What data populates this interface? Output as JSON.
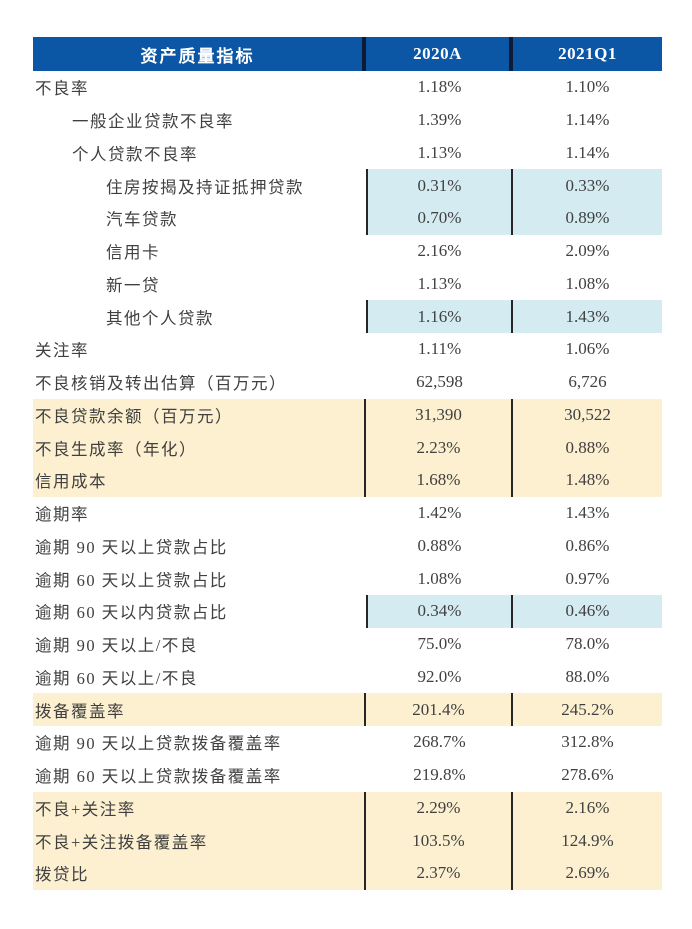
{
  "colors": {
    "header_bg": "#0B57A5",
    "header_divider": "#0D1B36",
    "highlight_blue": "#D4EBF2",
    "highlight_yellow": "#FCF0D0",
    "cell_border": "#262626",
    "text": "#404040",
    "header_text": "#FFFFFF",
    "page_bg": "#FFFFFF"
  },
  "table": {
    "header": {
      "indicator": "资产质量指标",
      "col_2020a": "2020A",
      "col_2021q1": "2021Q1"
    },
    "rows": [
      {
        "label": "不良率",
        "v2020a": "1.18%",
        "v2021q1": "1.10%",
        "indent": 0,
        "highlight": "none"
      },
      {
        "label": "一般企业贷款不良率",
        "v2020a": "1.39%",
        "v2021q1": "1.14%",
        "indent": 1,
        "highlight": "none"
      },
      {
        "label": "个人贷款不良率",
        "v2020a": "1.13%",
        "v2021q1": "1.14%",
        "indent": 1,
        "highlight": "none"
      },
      {
        "label": "住房按揭及持证抵押贷款",
        "v2020a": "0.31%",
        "v2021q1": "0.33%",
        "indent": 2,
        "highlight": "blue"
      },
      {
        "label": "汽车贷款",
        "v2020a": "0.70%",
        "v2021q1": "0.89%",
        "indent": 2,
        "highlight": "blue"
      },
      {
        "label": "信用卡",
        "v2020a": "2.16%",
        "v2021q1": "2.09%",
        "indent": 2,
        "highlight": "none"
      },
      {
        "label": "新一贷",
        "v2020a": "1.13%",
        "v2021q1": "1.08%",
        "indent": 2,
        "highlight": "none"
      },
      {
        "label": "其他个人贷款",
        "v2020a": "1.16%",
        "v2021q1": "1.43%",
        "indent": 2,
        "highlight": "blue"
      },
      {
        "label": "关注率",
        "v2020a": "1.11%",
        "v2021q1": "1.06%",
        "indent": 0,
        "highlight": "none"
      },
      {
        "label": "不良核销及转出估算（百万元）",
        "v2020a": "62,598",
        "v2021q1": "6,726",
        "indent": 0,
        "highlight": "none"
      },
      {
        "label": "不良贷款余额（百万元）",
        "v2020a": "31,390",
        "v2021q1": "30,522",
        "indent": 0,
        "highlight": "yellow"
      },
      {
        "label": "不良生成率（年化）",
        "v2020a": "2.23%",
        "v2021q1": "0.88%",
        "indent": 0,
        "highlight": "yellow"
      },
      {
        "label": "信用成本",
        "v2020a": "1.68%",
        "v2021q1": "1.48%",
        "indent": 0,
        "highlight": "yellow"
      },
      {
        "label": "逾期率",
        "v2020a": "1.42%",
        "v2021q1": "1.43%",
        "indent": 0,
        "highlight": "none"
      },
      {
        "label": "逾期 90 天以上贷款占比",
        "v2020a": "0.88%",
        "v2021q1": "0.86%",
        "indent": 0,
        "highlight": "none"
      },
      {
        "label": "逾期 60 天以上贷款占比",
        "v2020a": "1.08%",
        "v2021q1": "0.97%",
        "indent": 0,
        "highlight": "none"
      },
      {
        "label": "逾期 60 天以内贷款占比",
        "v2020a": "0.34%",
        "v2021q1": "0.46%",
        "indent": 0,
        "highlight": "blue"
      },
      {
        "label": "逾期 90 天以上/不良",
        "v2020a": "75.0%",
        "v2021q1": "78.0%",
        "indent": 0,
        "highlight": "none"
      },
      {
        "label": "逾期 60 天以上/不良",
        "v2020a": "92.0%",
        "v2021q1": "88.0%",
        "indent": 0,
        "highlight": "none"
      },
      {
        "label": "拨备覆盖率",
        "v2020a": "201.4%",
        "v2021q1": "245.2%",
        "indent": 0,
        "highlight": "yellow"
      },
      {
        "label": "逾期 90 天以上贷款拨备覆盖率",
        "v2020a": "268.7%",
        "v2021q1": "312.8%",
        "indent": 0,
        "highlight": "none"
      },
      {
        "label": "逾期 60 天以上贷款拨备覆盖率",
        "v2020a": "219.8%",
        "v2021q1": "278.6%",
        "indent": 0,
        "highlight": "none"
      },
      {
        "label": "不良+关注率",
        "v2020a": "2.29%",
        "v2021q1": "2.16%",
        "indent": 0,
        "highlight": "yellow"
      },
      {
        "label": "不良+关注拨备覆盖率",
        "v2020a": "103.5%",
        "v2021q1": "124.9%",
        "indent": 0,
        "highlight": "yellow"
      },
      {
        "label": "拨贷比",
        "v2020a": "2.37%",
        "v2021q1": "2.69%",
        "indent": 0,
        "highlight": "yellow"
      }
    ]
  },
  "chart_data": {
    "type": "table",
    "title": "资产质量指标",
    "columns": [
      "资产质量指标",
      "2020A",
      "2021Q1"
    ],
    "rows": [
      [
        "不良率",
        "1.18%",
        "1.10%"
      ],
      [
        "一般企业贷款不良率",
        "1.39%",
        "1.14%"
      ],
      [
        "个人贷款不良率",
        "1.13%",
        "1.14%"
      ],
      [
        "住房按揭及持证抵押贷款",
        "0.31%",
        "0.33%"
      ],
      [
        "汽车贷款",
        "0.70%",
        "0.89%"
      ],
      [
        "信用卡",
        "2.16%",
        "2.09%"
      ],
      [
        "新一贷",
        "1.13%",
        "1.08%"
      ],
      [
        "其他个人贷款",
        "1.16%",
        "1.43%"
      ],
      [
        "关注率",
        "1.11%",
        "1.06%"
      ],
      [
        "不良核销及转出估算（百万元）",
        "62,598",
        "6,726"
      ],
      [
        "不良贷款余额（百万元）",
        "31,390",
        "30,522"
      ],
      [
        "不良生成率（年化）",
        "2.23%",
        "0.88%"
      ],
      [
        "信用成本",
        "1.68%",
        "1.48%"
      ],
      [
        "逾期率",
        "1.42%",
        "1.43%"
      ],
      [
        "逾期 90 天以上贷款占比",
        "0.88%",
        "0.86%"
      ],
      [
        "逾期 60 天以上贷款占比",
        "1.08%",
        "0.97%"
      ],
      [
        "逾期 60 天以内贷款占比",
        "0.34%",
        "0.46%"
      ],
      [
        "逾期 90 天以上/不良",
        "75.0%",
        "78.0%"
      ],
      [
        "逾期 60 天以上/不良",
        "92.0%",
        "88.0%"
      ],
      [
        "拨备覆盖率",
        "201.4%",
        "245.2%"
      ],
      [
        "逾期 90 天以上贷款拨备覆盖率",
        "268.7%",
        "312.8%"
      ],
      [
        "逾期 60 天以上贷款拨备覆盖率",
        "219.8%",
        "278.6%"
      ],
      [
        "不良+关注率",
        "2.29%",
        "2.16%"
      ],
      [
        "不良+关注拨备覆盖率",
        "103.5%",
        "124.9%"
      ],
      [
        "拨贷比",
        "2.37%",
        "2.69%"
      ]
    ],
    "notes": {
      "highlight_blue_value_cells_rows": [
        "住房按揭及持证抵押贷款",
        "汽车贷款",
        "其他个人贷款",
        "逾期 60 天以内贷款占比"
      ],
      "highlight_yellow_full_rows": [
        "不良贷款余额（百万元）",
        "不良生成率（年化）",
        "信用成本",
        "拨备覆盖率",
        "不良+关注率",
        "不良+关注拨备覆盖率",
        "拨贷比"
      ]
    }
  }
}
